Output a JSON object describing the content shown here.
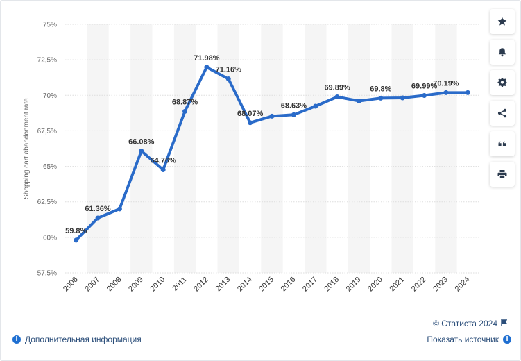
{
  "colors": {
    "line": "#2a6bc9",
    "band": "#f5f5f5",
    "grid": "#dddddd",
    "link": "#2b4e7a"
  },
  "toolbar": [
    {
      "name": "favorite-button",
      "icon": "star-icon"
    },
    {
      "name": "notification-button",
      "icon": "bell-icon"
    },
    {
      "name": "settings-button",
      "icon": "gear-icon"
    },
    {
      "name": "share-button",
      "icon": "share-icon"
    },
    {
      "name": "cite-button",
      "icon": "quote-icon"
    },
    {
      "name": "print-button",
      "icon": "printer-icon"
    }
  ],
  "footer": {
    "copyright": "© Статиста 2024",
    "more_info": "Дополнительная информация",
    "show_source": "Показать источник"
  },
  "chart_data": {
    "type": "line",
    "ylabel": "Shopping cart abandonment rate",
    "ylim": [
      57.5,
      75
    ],
    "yticks": [
      57.5,
      60,
      62.5,
      65,
      67.5,
      70,
      72.5,
      75
    ],
    "ytick_labels": [
      "57,5%",
      "60%",
      "62,5%",
      "65%",
      "67,5%",
      "70%",
      "72,5%",
      "75%"
    ],
    "x": [
      "2006",
      "2007",
      "2008",
      "2009",
      "2010",
      "2011",
      "2012",
      "2013",
      "2014",
      "2015",
      "2016",
      "2017",
      "2018",
      "2019",
      "2020",
      "2021",
      "2022",
      "2023",
      "2024"
    ],
    "series": [
      {
        "values": [
          59.8,
          61.36,
          62.0,
          66.08,
          64.76,
          68.87,
          71.98,
          71.16,
          68.07,
          68.53,
          68.63,
          69.23,
          69.89,
          69.6,
          69.8,
          69.82,
          69.99,
          70.19,
          70.19
        ],
        "labels": [
          "59.8%",
          "61.36%",
          "",
          "66.08%",
          "64.76%",
          "68.87%",
          "71.98%",
          "71.16%",
          "68.07%",
          "",
          "68.63%",
          "",
          "69.89%",
          "",
          "69.8%",
          "",
          "69.99%",
          "70.19%",
          ""
        ]
      }
    ],
    "grid": true,
    "legend": "none"
  }
}
